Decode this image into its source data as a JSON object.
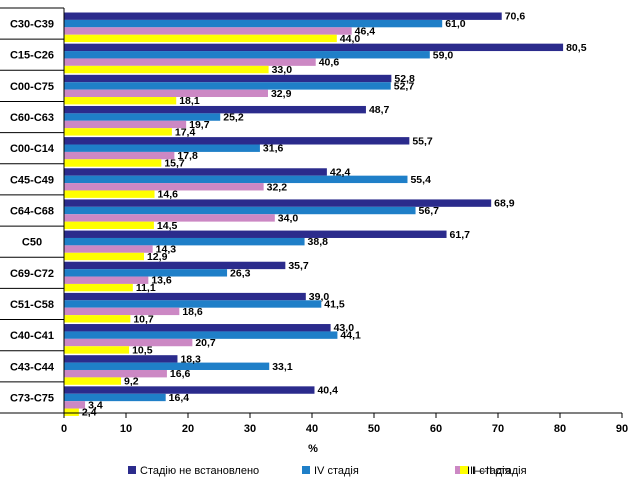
{
  "chart_data": {
    "type": "bar",
    "orientation": "horizontal",
    "categories": [
      "C30-C39",
      "C15-C26",
      "C00-C75",
      "C60-C63",
      "C00-C14",
      "C45-C49",
      "C64-C68",
      "C50",
      "C69-C72",
      "C51-C58",
      "C40-C41",
      "C43-C44",
      "C73-C75"
    ],
    "series": [
      {
        "name": "Стадію не встановлено",
        "color": "#2b2b8c",
        "values": [
          70.6,
          80.5,
          52.8,
          48.7,
          55.7,
          42.4,
          68.9,
          61.7,
          35.7,
          39.0,
          43.0,
          18.3,
          40.4
        ]
      },
      {
        "name": "IV стадія",
        "color": "#1f7fc8",
        "values": [
          61.0,
          59.0,
          52.7,
          25.2,
          31.6,
          55.4,
          56.7,
          38.8,
          26.3,
          41.5,
          44.1,
          33.1,
          16.4
        ]
      },
      {
        "name": "III стадія",
        "color": "#cc88c4",
        "values": [
          46.4,
          40.6,
          32.9,
          19.7,
          17.8,
          32.2,
          34.0,
          14.3,
          13.6,
          18.6,
          20.7,
          16.6,
          3.4
        ]
      },
      {
        "name": "I—II стадія",
        "color": "#ffff00",
        "values": [
          44.0,
          33.0,
          18.1,
          17.4,
          15.7,
          14.6,
          14.5,
          12.9,
          11.1,
          10.7,
          10.5,
          9.2,
          2.4
        ]
      }
    ],
    "value_labels": [
      [
        "70,6",
        "61,0",
        "46,4",
        "44,0"
      ],
      [
        "80,5",
        "59,0",
        "40,6",
        "33,0"
      ],
      [
        "52,8",
        "52,7",
        "32,9",
        "18,1"
      ],
      [
        "48,7",
        "25,2",
        "19,7",
        "17,4"
      ],
      [
        "55,7",
        "31,6",
        "17,8",
        "15,7"
      ],
      [
        "42,4",
        "55,4",
        "32,2",
        "14,6"
      ],
      [
        "68,9",
        "56,7",
        "34,0",
        "14,5"
      ],
      [
        "61,7",
        "38,8",
        "14,3",
        "12,9"
      ],
      [
        "35,7",
        "26,3",
        "13,6",
        "11,1"
      ],
      [
        "39,0",
        "41,5",
        "18,6",
        "10,7"
      ],
      [
        "43,0",
        "44,1",
        "20,7",
        "10,5"
      ],
      [
        "18,3",
        "33,1",
        "16,6",
        "9,2"
      ],
      [
        "40,4",
        "16,4",
        "3,4",
        "2,4"
      ]
    ],
    "xlabel": "%",
    "ylabel": "",
    "xlim": [
      0,
      90
    ],
    "xticks": [
      0,
      10,
      20,
      30,
      40,
      50,
      60,
      70,
      80,
      90
    ],
    "xtick_labels": [
      "0",
      "10",
      "20",
      "30",
      "40",
      "50",
      "60",
      "70",
      "80",
      "90"
    ],
    "grid": false,
    "legend_position": "bottom"
  }
}
